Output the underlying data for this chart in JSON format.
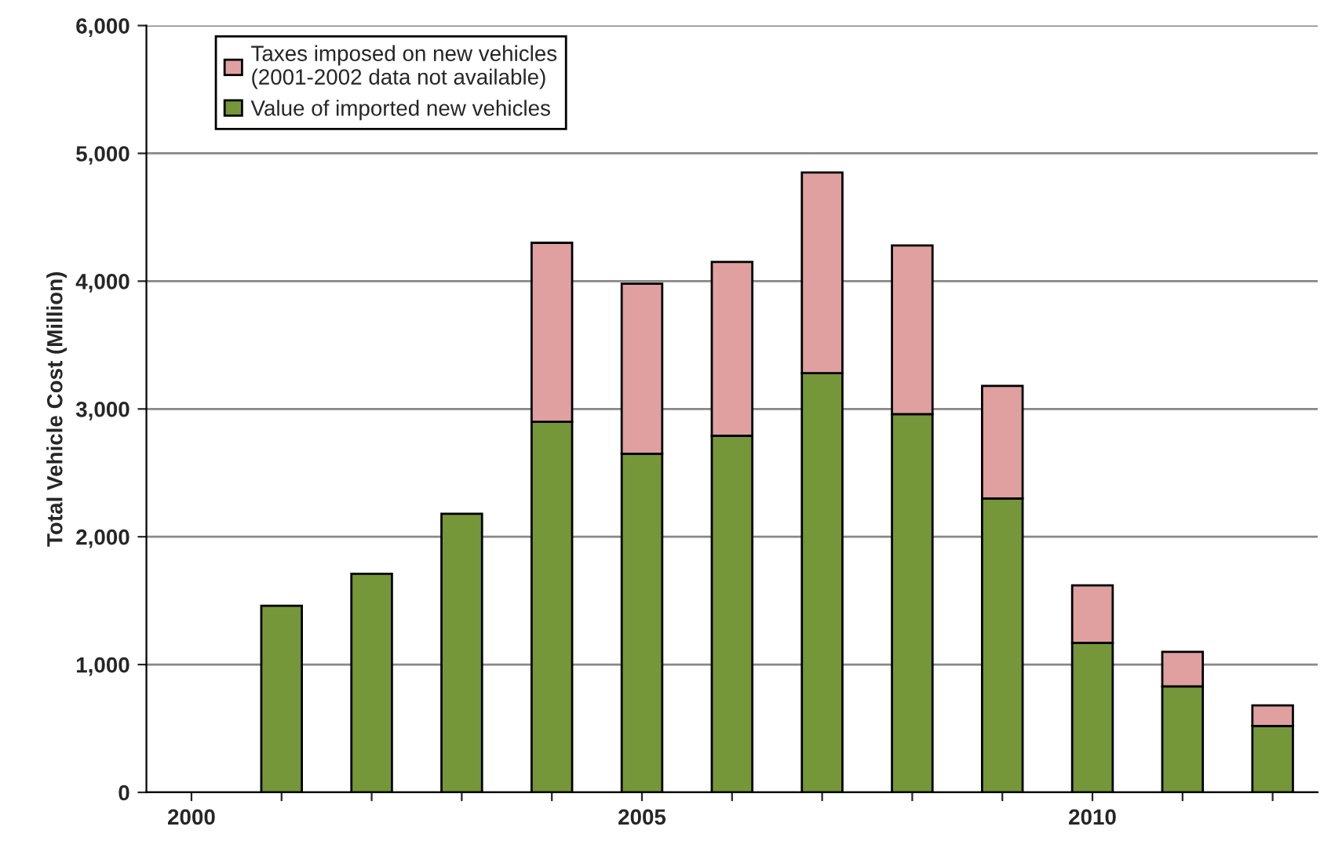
{
  "chart_data": {
    "type": "bar",
    "stacked": true,
    "ylabel": "Total Vehicle Cost (Million)",
    "categories": [
      "2000",
      null,
      null,
      null,
      null,
      "2005",
      null,
      null,
      null,
      null,
      "2010",
      null,
      null
    ],
    "series": [
      {
        "name": "Value of imported new vehicles",
        "color": "#76963a",
        "values": [
          null,
          1460,
          1710,
          2180,
          2900,
          2650,
          2790,
          3280,
          2960,
          2300,
          1170,
          830,
          520
        ]
      },
      {
        "name": "Taxes imposed on new vehicles\n(2001-2002 data not available)",
        "color": "#e0a0a0",
        "values": [
          null,
          null,
          null,
          null,
          1400,
          1330,
          1360,
          1570,
          1320,
          880,
          450,
          270,
          160
        ]
      }
    ],
    "ylim": [
      0,
      6000
    ],
    "yticks": [
      0,
      {
        "value": 1000,
        "label": "1,000"
      },
      {
        "value": 2000,
        "label": "2,000"
      },
      {
        "value": 3000,
        "label": "3,000"
      },
      {
        "value": 4000,
        "label": "4,000"
      },
      {
        "value": 5000,
        "label": "5,000"
      },
      {
        "value": 6000,
        "label": "6,000"
      }
    ],
    "grid": "y",
    "legend": "top left"
  }
}
